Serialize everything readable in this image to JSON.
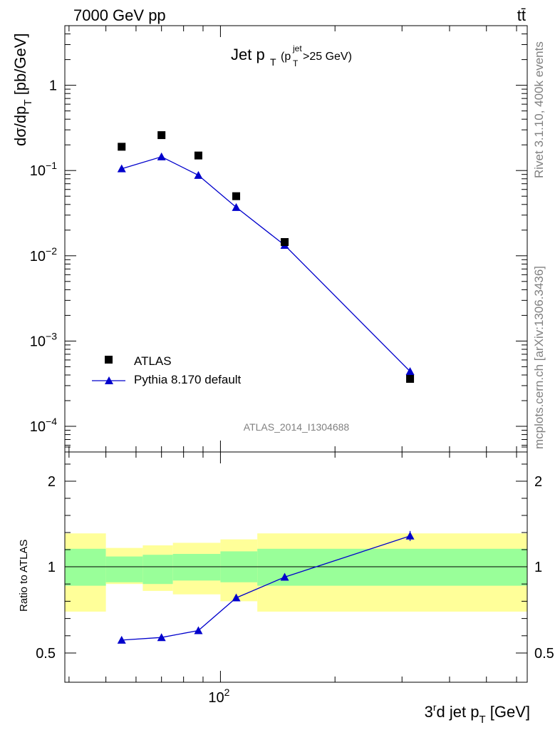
{
  "header": {
    "left_title": "7000 GeV pp",
    "right_title": "tt̄"
  },
  "side_labels": {
    "rivet": "Rivet 3.1.10,  400k events",
    "mcplots": "mcplots.cern.ch [arXiv:1306.3436]"
  },
  "plot_title": {
    "main": "Jet p",
    "main_sub": "T",
    "cut_open": "(p",
    "cut_sup": "jet",
    "cut_sub": "T",
    "cut_rest": ">25 GeV)"
  },
  "analysis_id": "ATLAS_2014_I1304688",
  "legend": {
    "data_label": "ATLAS",
    "mc_label": "Pythia 8.170 default"
  },
  "axes": {
    "main_ylabel": {
      "a": "dσ/dp",
      "sub": "T",
      "b": " [pb/GeV]"
    },
    "ratio_ylabel": "Ratio to ATLAS",
    "xlabel": {
      "a": "3",
      "sup": "r",
      "b": "d jet p",
      "sub": "T",
      "c": " [GeV]"
    },
    "main_yticks": [
      {
        "value": 1,
        "label": "1",
        "exp": ""
      },
      {
        "value": 0.1,
        "label": "10",
        "exp": "−1"
      },
      {
        "value": 0.01,
        "label": "10",
        "exp": "−2"
      },
      {
        "value": 0.001,
        "label": "10",
        "exp": "−3"
      },
      {
        "value": 0.0001,
        "label": "10",
        "exp": "−4"
      }
    ],
    "ratio_yticks": [
      {
        "value": 2,
        "label": "2"
      },
      {
        "value": 1,
        "label": "1"
      },
      {
        "value": 0.5,
        "label": "0.5"
      }
    ],
    "xtick": {
      "value": 100,
      "label": "10",
      "exp": "2"
    }
  },
  "chart_data": [
    {
      "type": "scatter",
      "title": "Jet pT (pT jet > 25 GeV)",
      "xlabel": "3rd jet pT [GeV]",
      "ylabel": "dσ/dpT [pb/GeV]",
      "xscale": "log",
      "yscale": "log",
      "xlim": [
        39,
        640
      ],
      "ylim": [
        5e-05,
        5
      ],
      "series": [
        {
          "name": "ATLAS",
          "marker": "square",
          "color": "#000000",
          "x": [
            55,
            70,
            87.5,
            110,
            147.5,
            315
          ],
          "values": [
            0.19,
            0.26,
            0.15,
            0.05,
            0.0145,
            0.00036
          ]
        },
        {
          "name": "Pythia 8.170 default",
          "marker": "triangle",
          "color": "#0000cc",
          "x": [
            55,
            70,
            87.5,
            110,
            147.5,
            315
          ],
          "values": [
            0.105,
            0.145,
            0.088,
            0.037,
            0.0133,
            0.00044
          ]
        }
      ]
    },
    {
      "type": "line",
      "title": "Ratio to ATLAS",
      "xscale": "log",
      "ylim": [
        0.39,
        2.5
      ],
      "bins": [
        [
          39,
          50
        ],
        [
          50,
          62.5
        ],
        [
          62.5,
          75
        ],
        [
          75,
          100
        ],
        [
          100,
          125
        ],
        [
          125,
          640
        ]
      ],
      "bands": {
        "inner_color": "#99ff99",
        "outer_color": "#ffff99",
        "inner": [
          [
            0.89,
            1.21
          ],
          [
            0.91,
            1.12
          ],
          [
            0.9,
            1.14
          ],
          [
            0.92,
            1.15
          ],
          [
            0.91,
            1.18
          ],
          [
            0.89,
            1.21
          ]
        ],
        "outer": [
          [
            0.74,
            1.39
          ],
          [
            0.9,
            1.22
          ],
          [
            0.86,
            1.25
          ],
          [
            0.84,
            1.28
          ],
          [
            0.8,
            1.32
          ],
          [
            0.74,
            1.39
          ]
        ]
      },
      "series": [
        {
          "name": "Pythia 8.170 default",
          "color": "#0000cc",
          "x": [
            55,
            70,
            87.5,
            110,
            147.5,
            315
          ],
          "values": [
            0.575,
            0.59,
            0.63,
            0.82,
            0.94,
            1.36
          ]
        }
      ]
    }
  ]
}
